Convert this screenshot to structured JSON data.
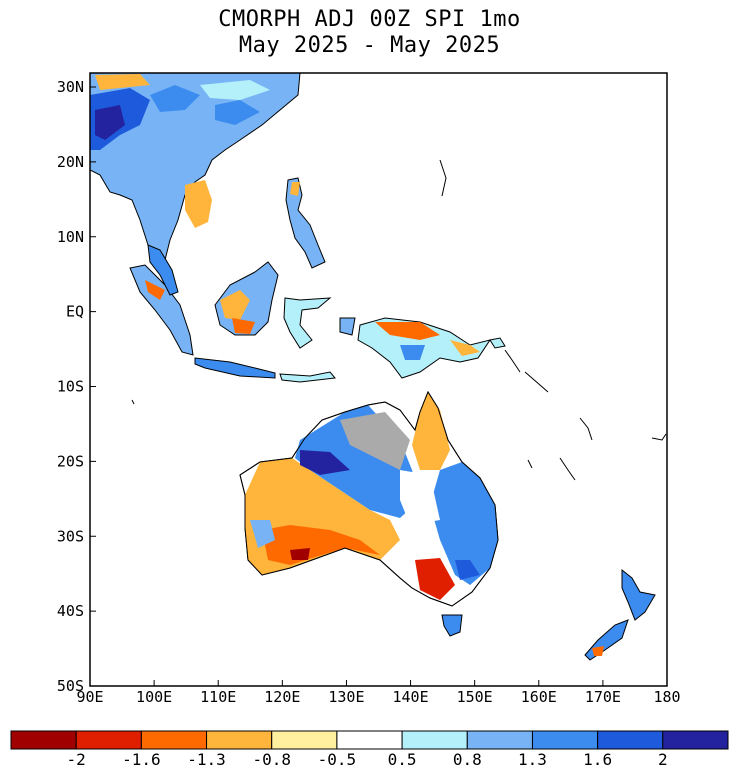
{
  "title_line1": "CMORPH ADJ 00Z SPI 1mo",
  "title_line2": "May 2025 - May 2025",
  "map": {
    "lon_range": [
      90,
      180
    ],
    "lat_range": [
      -50,
      30
    ],
    "x_ticks": [
      "90E",
      "100E",
      "110E",
      "120E",
      "130E",
      "140E",
      "150E",
      "160E",
      "170E",
      "180"
    ],
    "y_ticks": [
      "30N",
      "20N",
      "10N",
      "EQ",
      "10S",
      "20S",
      "30S",
      "40S",
      "50S"
    ]
  },
  "colorbar": {
    "boundaries": [
      "-2",
      "-1.6",
      "-1.3",
      "-0.8",
      "-0.5",
      "0.5",
      "0.8",
      "1.3",
      "1.6",
      "2"
    ],
    "colors": [
      "#a00000",
      "#e01e00",
      "#ff6a00",
      "#ffb43c",
      "#fff0a0",
      "#ffffff",
      "#b4f0fa",
      "#78b4f5",
      "#3c8cf0",
      "#1e5adc",
      "#2323a0"
    ]
  },
  "colors": {
    "no_data": "#aaaaaa",
    "coastline": "#000000"
  }
}
